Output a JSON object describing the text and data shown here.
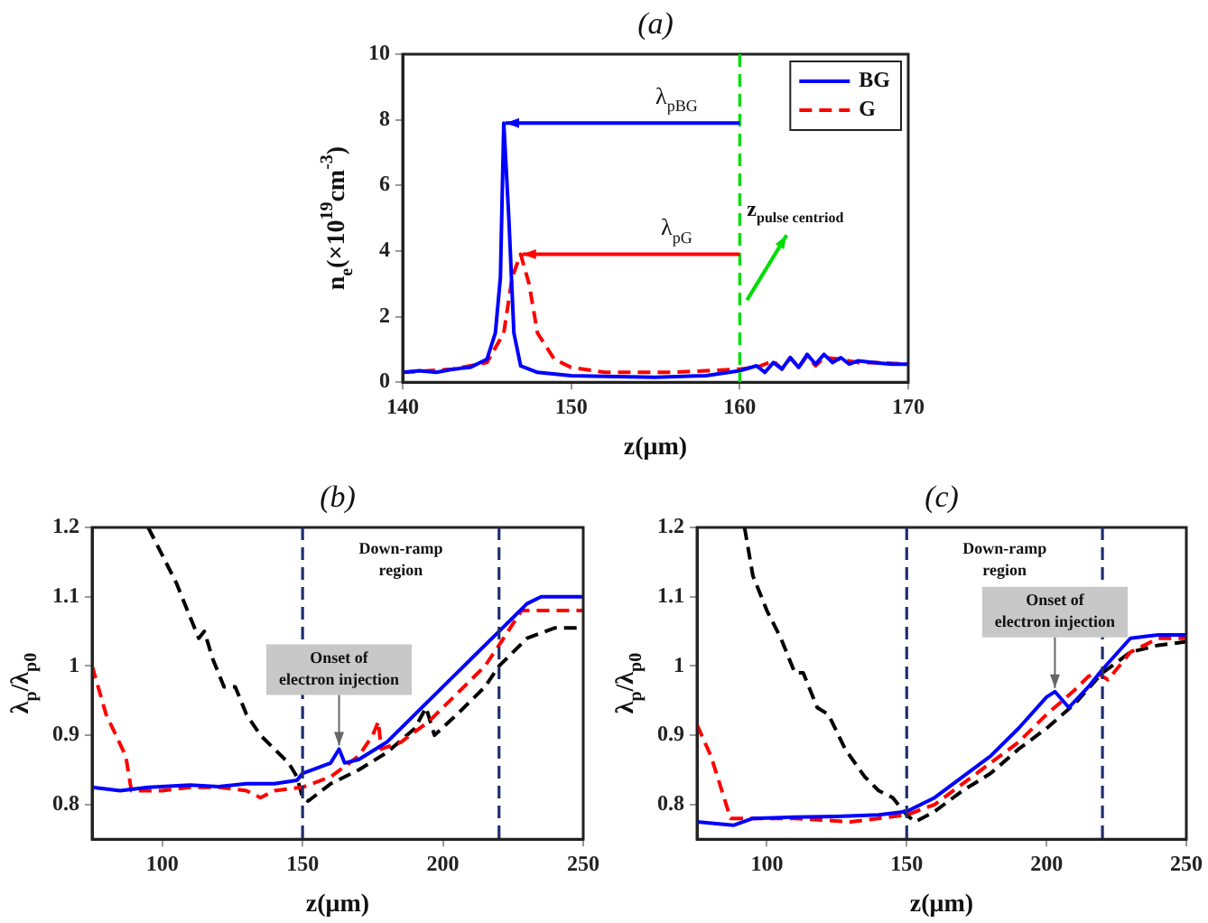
{
  "chart_data": [
    {
      "type": "line",
      "title": "(a)",
      "xlabel": "z(μm)",
      "ylabel": "n$_{e}$(×10$^{19}$cm$^{-3}$)",
      "xlim": [
        140,
        170
      ],
      "ylim": [
        0,
        10
      ],
      "xticks": [
        140,
        150,
        160,
        170
      ],
      "yticks": [
        0,
        2,
        4,
        6,
        8,
        10
      ],
      "grid": false,
      "legend": "top right",
      "marker": "none",
      "series": [
        {
          "name": "BG",
          "color": "#0000ff",
          "line_style": "solid",
          "x": [
            140,
            141,
            142,
            143,
            144,
            145,
            145.5,
            145.8,
            146,
            146.3,
            146.6,
            147,
            148,
            150,
            152,
            155,
            158,
            160,
            161,
            161.5,
            162,
            162.5,
            163,
            163.5,
            164,
            164.5,
            165,
            165.5,
            166,
            166.5,
            167,
            168,
            169,
            170
          ],
          "values": [
            0.3,
            0.35,
            0.3,
            0.4,
            0.45,
            0.7,
            1.5,
            3.2,
            7.9,
            5,
            1.5,
            0.5,
            0.3,
            0.2,
            0.18,
            0.15,
            0.2,
            0.35,
            0.5,
            0.3,
            0.6,
            0.4,
            0.75,
            0.45,
            0.85,
            0.55,
            0.85,
            0.6,
            0.75,
            0.55,
            0.65,
            0.6,
            0.55,
            0.55
          ]
        },
        {
          "name": "G",
          "color": "#ff0000",
          "line_style": "dashed",
          "x": [
            140,
            143,
            145,
            146,
            146.5,
            147,
            147.5,
            148,
            149,
            150,
            152,
            156,
            160,
            161,
            162,
            162.5,
            163,
            163.5,
            164,
            164.5,
            165,
            166,
            167,
            168,
            170
          ],
          "values": [
            0.3,
            0.4,
            0.6,
            1.5,
            3.2,
            3.9,
            3,
            1.5,
            0.7,
            0.45,
            0.3,
            0.3,
            0.4,
            0.45,
            0.65,
            0.4,
            0.75,
            0.45,
            0.8,
            0.5,
            0.75,
            0.7,
            0.6,
            0.6,
            0.55
          ]
        }
      ],
      "ref_lines": [
        {
          "axis": "x",
          "value": 160,
          "color": "#00dd00",
          "line_style": "dashed"
        }
      ],
      "annotations": [
        "λ$_{pBG}$",
        "λ$_{pG}$",
        "z$_{pulse centriod}$"
      ]
    },
    {
      "type": "line",
      "title": "(b)",
      "xlabel": "z(μm)",
      "ylabel": "λ$_{p}$/λ$_{p0}$",
      "xlim": [
        75,
        250
      ],
      "ylim": [
        0.75,
        1.2
      ],
      "xticks": [
        100,
        150,
        200,
        250
      ],
      "yticks": [
        0.8,
        0.9,
        1,
        1.1,
        1.2
      ],
      "grid": false,
      "marker": "none",
      "series": [
        {
          "color": "#0000ff",
          "line_style": "solid",
          "x": [
            75,
            85,
            95,
            110,
            120,
            130,
            140,
            148,
            150,
            160,
            163,
            165,
            170,
            180,
            190,
            200,
            210,
            220,
            225,
            230,
            235,
            250
          ],
          "values": [
            0.825,
            0.82,
            0.825,
            0.828,
            0.826,
            0.83,
            0.83,
            0.835,
            0.845,
            0.86,
            0.88,
            0.86,
            0.865,
            0.89,
            0.93,
            0.97,
            1.01,
            1.05,
            1.07,
            1.09,
            1.1,
            1.1
          ]
        },
        {
          "color": "#ff0000",
          "line_style": "dashed",
          "x": [
            75,
            80,
            87,
            89,
            100,
            110,
            120,
            130,
            135,
            140,
            150,
            160,
            170,
            175,
            177,
            178,
            185,
            195,
            205,
            215,
            220,
            228,
            250
          ],
          "values": [
            1.0,
            0.93,
            0.87,
            0.82,
            0.82,
            0.825,
            0.825,
            0.82,
            0.81,
            0.82,
            0.825,
            0.84,
            0.87,
            0.9,
            0.92,
            0.88,
            0.89,
            0.92,
            0.96,
            1.0,
            1.03,
            1.08,
            1.08
          ]
        },
        {
          "color": "#000000",
          "line_style": "dashed",
          "x": [
            95,
            100,
            105,
            110,
            113,
            115,
            118,
            122,
            126,
            130,
            135,
            140,
            145,
            148,
            150,
            152,
            160,
            170,
            180,
            190,
            194,
            197,
            205,
            215,
            220,
            230,
            240,
            250
          ],
          "values": [
            1.2,
            1.16,
            1.12,
            1.07,
            1.04,
            1.05,
            1.01,
            0.97,
            0.97,
            0.93,
            0.9,
            0.88,
            0.86,
            0.84,
            0.81,
            0.805,
            0.83,
            0.85,
            0.875,
            0.91,
            0.94,
            0.9,
            0.93,
            0.97,
            1.0,
            1.04,
            1.055,
            1.055
          ]
        }
      ],
      "ref_lines": [
        {
          "axis": "x",
          "value": 150,
          "color": "#1f2f6f",
          "line_style": "dashed"
        },
        {
          "axis": "x",
          "value": 220,
          "color": "#1f2f6f",
          "line_style": "dashed"
        }
      ],
      "annotations": [
        "Down-ramp region",
        {
          "text": "Onset of electron injection",
          "x": 163,
          "y": 0.88
        }
      ]
    },
    {
      "type": "line",
      "title": "(c)",
      "xlabel": "z(μm)",
      "ylabel": "λ$_{p}$/λ$_{p0}$",
      "xlim": [
        75,
        250
      ],
      "ylim": [
        0.75,
        1.2
      ],
      "xticks": [
        100,
        150,
        200,
        250
      ],
      "yticks": [
        0.8,
        0.9,
        1,
        1.1,
        1.2
      ],
      "grid": false,
      "marker": "none",
      "series": [
        {
          "color": "#0000ff",
          "line_style": "solid",
          "x": [
            75,
            88,
            95,
            110,
            125,
            140,
            150,
            160,
            170,
            180,
            190,
            200,
            203,
            208,
            215,
            220,
            230,
            240,
            250
          ],
          "values": [
            0.775,
            0.77,
            0.78,
            0.782,
            0.783,
            0.785,
            0.79,
            0.81,
            0.84,
            0.87,
            0.91,
            0.955,
            0.963,
            0.94,
            0.97,
            0.995,
            1.04,
            1.045,
            1.045
          ]
        },
        {
          "color": "#ff0000",
          "line_style": "dashed",
          "x": [
            75,
            80,
            87,
            95,
            110,
            130,
            140,
            150,
            160,
            170,
            180,
            190,
            200,
            210,
            215,
            218,
            222,
            230,
            240,
            250
          ],
          "values": [
            0.915,
            0.87,
            0.78,
            0.78,
            0.78,
            0.775,
            0.78,
            0.785,
            0.8,
            0.83,
            0.86,
            0.89,
            0.93,
            0.965,
            0.985,
            0.99,
            0.98,
            1.02,
            1.04,
            1.04
          ]
        },
        {
          "color": "#000000",
          "line_style": "dashed",
          "x": [
            92,
            95,
            100,
            105,
            110,
            113,
            118,
            122,
            128,
            135,
            140,
            145,
            150,
            153,
            160,
            170,
            180,
            190,
            200,
            210,
            220,
            230,
            240,
            250
          ],
          "values": [
            1.2,
            1.13,
            1.08,
            1.04,
            0.99,
            0.99,
            0.94,
            0.93,
            0.88,
            0.84,
            0.82,
            0.81,
            0.785,
            0.775,
            0.79,
            0.82,
            0.845,
            0.88,
            0.91,
            0.945,
            0.99,
            1.02,
            1.03,
            1.035
          ]
        }
      ],
      "ref_lines": [
        {
          "axis": "x",
          "value": 150,
          "color": "#1f2f6f",
          "line_style": "dashed"
        },
        {
          "axis": "x",
          "value": 220,
          "color": "#1f2f6f",
          "line_style": "dashed"
        }
      ],
      "annotations": [
        "Down-ramp region",
        {
          "text": "Onset of electron injection",
          "x": 203,
          "y": 0.963
        }
      ]
    }
  ]
}
